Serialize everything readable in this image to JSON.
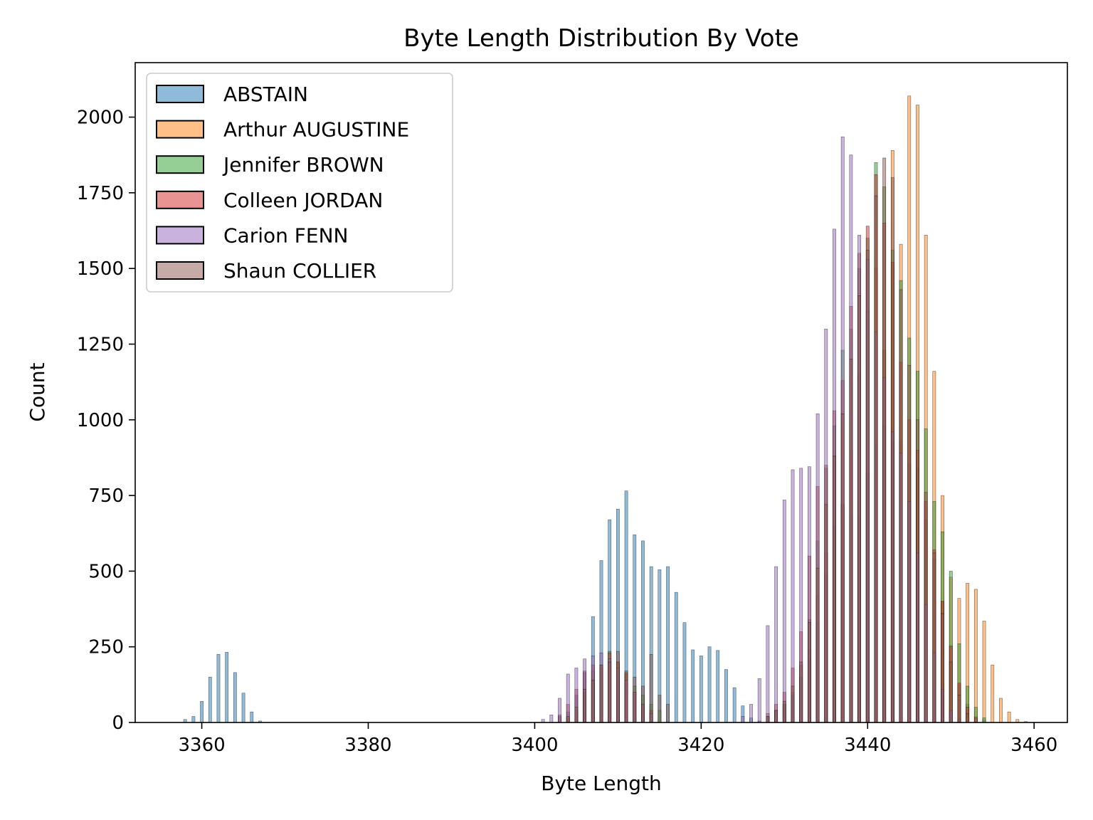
{
  "chart_data": {
    "type": "bar",
    "title": "Byte Length Distribution By Vote",
    "xlabel": "Byte Length",
    "ylabel": "Count",
    "xlim": [
      3352,
      3464
    ],
    "ylim": [
      0,
      2180
    ],
    "xticks": [
      3360,
      3380,
      3400,
      3420,
      3440,
      3460
    ],
    "yticks": [
      0,
      250,
      500,
      750,
      1000,
      1250,
      1500,
      1750,
      2000
    ],
    "grid": false,
    "legend_position": "top-left",
    "series": [
      {
        "name": "ABSTAIN",
        "color": "#1f77b4",
        "bins": [
          [
            3358,
            10
          ],
          [
            3359,
            20
          ],
          [
            3360,
            70
          ],
          [
            3361,
            150
          ],
          [
            3362,
            225
          ],
          [
            3363,
            232
          ],
          [
            3364,
            165
          ],
          [
            3365,
            97
          ],
          [
            3366,
            35
          ],
          [
            3367,
            5
          ],
          [
            3403,
            20
          ],
          [
            3404,
            35
          ],
          [
            3405,
            90
          ],
          [
            3406,
            165
          ],
          [
            3407,
            350
          ],
          [
            3408,
            535
          ],
          [
            3409,
            670
          ],
          [
            3410,
            705
          ],
          [
            3411,
            765
          ],
          [
            3412,
            620
          ],
          [
            3413,
            600
          ],
          [
            3414,
            515
          ],
          [
            3415,
            505
          ],
          [
            3416,
            515
          ],
          [
            3417,
            430
          ],
          [
            3418,
            330
          ],
          [
            3419,
            240
          ],
          [
            3420,
            220
          ],
          [
            3421,
            250
          ],
          [
            3422,
            238
          ],
          [
            3423,
            175
          ],
          [
            3424,
            115
          ],
          [
            3425,
            55
          ],
          [
            3426,
            15
          ],
          [
            3427,
            5
          ],
          [
            3428,
            20
          ],
          [
            3429,
            40
          ],
          [
            3430,
            60
          ],
          [
            3431,
            90
          ],
          [
            3432,
            150
          ],
          [
            3433,
            210
          ],
          [
            3434,
            330
          ],
          [
            3435,
            490
          ],
          [
            3436,
            650
          ],
          [
            3437,
            720
          ],
          [
            3438,
            680
          ],
          [
            3439,
            680
          ],
          [
            3440,
            825
          ],
          [
            3441,
            920
          ],
          [
            3442,
            980
          ],
          [
            3443,
            930
          ],
          [
            3444,
            930
          ],
          [
            3445,
            855
          ],
          [
            3446,
            840
          ],
          [
            3447,
            670
          ],
          [
            3448,
            540
          ],
          [
            3449,
            400
          ],
          [
            3450,
            255
          ],
          [
            3451,
            125
          ],
          [
            3452,
            60
          ],
          [
            3453,
            20
          ],
          [
            3454,
            8
          ]
        ]
      },
      {
        "name": "Arthur AUGUSTINE",
        "color": "#ff7f0e",
        "bins": [
          [
            3433,
            240
          ],
          [
            3434,
            420
          ],
          [
            3435,
            560
          ],
          [
            3436,
            630
          ],
          [
            3437,
            720
          ],
          [
            3438,
            900
          ],
          [
            3439,
            1150
          ],
          [
            3440,
            1360
          ],
          [
            3441,
            1500
          ],
          [
            3442,
            1230
          ],
          [
            3443,
            1890
          ],
          [
            3444,
            1580
          ],
          [
            3445,
            2070
          ],
          [
            3446,
            2040
          ],
          [
            3447,
            1610
          ],
          [
            3448,
            1160
          ],
          [
            3449,
            750
          ],
          [
            3450,
            480
          ],
          [
            3451,
            410
          ],
          [
            3452,
            460
          ],
          [
            3453,
            440
          ],
          [
            3454,
            335
          ],
          [
            3455,
            190
          ],
          [
            3456,
            80
          ],
          [
            3457,
            35
          ],
          [
            3458,
            10
          ],
          [
            3459,
            3
          ]
        ]
      },
      {
        "name": "Jennifer BROWN",
        "color": "#2ca02c",
        "bins": [
          [
            3404,
            15
          ],
          [
            3405,
            40
          ],
          [
            3406,
            100
          ],
          [
            3407,
            170
          ],
          [
            3408,
            180
          ],
          [
            3409,
            235
          ],
          [
            3410,
            200
          ],
          [
            3411,
            165
          ],
          [
            3412,
            120
          ],
          [
            3413,
            90
          ],
          [
            3414,
            60
          ],
          [
            3415,
            40
          ],
          [
            3428,
            20
          ],
          [
            3429,
            40
          ],
          [
            3430,
            60
          ],
          [
            3431,
            100
          ],
          [
            3432,
            190
          ],
          [
            3433,
            340
          ],
          [
            3434,
            600
          ],
          [
            3435,
            840
          ],
          [
            3436,
            980
          ],
          [
            3437,
            1230
          ],
          [
            3438,
            1300
          ],
          [
            3439,
            1500
          ],
          [
            3440,
            1600
          ],
          [
            3441,
            1850
          ],
          [
            3442,
            1770
          ],
          [
            3443,
            1560
          ],
          [
            3444,
            1460
          ],
          [
            3445,
            1270
          ],
          [
            3446,
            1160
          ],
          [
            3447,
            970
          ],
          [
            3448,
            730
          ],
          [
            3449,
            630
          ],
          [
            3450,
            500
          ],
          [
            3451,
            260
          ],
          [
            3452,
            120
          ],
          [
            3453,
            50
          ],
          [
            3454,
            15
          ]
        ]
      },
      {
        "name": "Colleen JORDAN",
        "color": "#d62728",
        "bins": [
          [
            3403,
            25
          ],
          [
            3404,
            60
          ],
          [
            3405,
            110
          ],
          [
            3406,
            170
          ],
          [
            3407,
            190
          ],
          [
            3408,
            190
          ],
          [
            3409,
            230
          ],
          [
            3410,
            200
          ],
          [
            3411,
            160
          ],
          [
            3412,
            100
          ],
          [
            3413,
            60
          ],
          [
            3414,
            40
          ],
          [
            3428,
            30
          ],
          [
            3429,
            60
          ],
          [
            3430,
            100
          ],
          [
            3431,
            180
          ],
          [
            3432,
            300
          ],
          [
            3433,
            550
          ],
          [
            3434,
            780
          ],
          [
            3435,
            850
          ],
          [
            3436,
            1030
          ],
          [
            3437,
            1130
          ],
          [
            3438,
            1375
          ],
          [
            3439,
            1550
          ],
          [
            3440,
            1640
          ],
          [
            3441,
            1810
          ],
          [
            3442,
            1650
          ],
          [
            3443,
            1520
          ],
          [
            3444,
            1190
          ],
          [
            3445,
            1000
          ],
          [
            3446,
            900
          ],
          [
            3447,
            730
          ],
          [
            3448,
            570
          ],
          [
            3449,
            400
          ],
          [
            3450,
            250
          ],
          [
            3451,
            130
          ],
          [
            3452,
            50
          ],
          [
            3453,
            15
          ]
        ]
      },
      {
        "name": "Carion FENN",
        "color": "#9467bd",
        "bins": [
          [
            3401,
            10
          ],
          [
            3402,
            25
          ],
          [
            3403,
            80
          ],
          [
            3404,
            160
          ],
          [
            3405,
            180
          ],
          [
            3406,
            210
          ],
          [
            3407,
            220
          ],
          [
            3408,
            230
          ],
          [
            3409,
            210
          ],
          [
            3410,
            180
          ],
          [
            3411,
            140
          ],
          [
            3412,
            100
          ],
          [
            3413,
            60
          ],
          [
            3414,
            30
          ],
          [
            3425,
            20
          ],
          [
            3426,
            60
          ],
          [
            3427,
            145
          ],
          [
            3428,
            320
          ],
          [
            3429,
            515
          ],
          [
            3430,
            735
          ],
          [
            3431,
            835
          ],
          [
            3432,
            840
          ],
          [
            3433,
            845
          ],
          [
            3434,
            1020
          ],
          [
            3435,
            1300
          ],
          [
            3436,
            1630
          ],
          [
            3437,
            1935
          ],
          [
            3438,
            1875
          ],
          [
            3439,
            1610
          ],
          [
            3440,
            1530
          ],
          [
            3441,
            1290
          ],
          [
            3442,
            1140
          ],
          [
            3443,
            960
          ],
          [
            3444,
            890
          ],
          [
            3445,
            730
          ],
          [
            3446,
            560
          ],
          [
            3447,
            390
          ],
          [
            3448,
            230
          ],
          [
            3449,
            110
          ],
          [
            3450,
            40
          ],
          [
            3451,
            10
          ]
        ]
      },
      {
        "name": "Shaun COLLIER",
        "color": "#8c564b",
        "bins": [
          [
            3404,
            20
          ],
          [
            3405,
            50
          ],
          [
            3406,
            110
          ],
          [
            3407,
            140
          ],
          [
            3408,
            190
          ],
          [
            3409,
            200
          ],
          [
            3410,
            235
          ],
          [
            3411,
            170
          ],
          [
            3412,
            150
          ],
          [
            3413,
            120
          ],
          [
            3414,
            225
          ],
          [
            3415,
            90
          ],
          [
            3416,
            60
          ],
          [
            3428,
            20
          ],
          [
            3429,
            40
          ],
          [
            3430,
            70
          ],
          [
            3431,
            120
          ],
          [
            3432,
            200
          ],
          [
            3433,
            330
          ],
          [
            3434,
            510
          ],
          [
            3435,
            720
          ],
          [
            3436,
            880
          ],
          [
            3437,
            1020
          ],
          [
            3438,
            1200
          ],
          [
            3439,
            1410
          ],
          [
            3440,
            1560
          ],
          [
            3441,
            1740
          ],
          [
            3442,
            1865
          ],
          [
            3443,
            1800
          ],
          [
            3444,
            1430
          ],
          [
            3445,
            1180
          ],
          [
            3446,
            1000
          ],
          [
            3447,
            760
          ],
          [
            3448,
            560
          ],
          [
            3449,
            360
          ],
          [
            3450,
            200
          ],
          [
            3451,
            90
          ],
          [
            3452,
            30
          ]
        ]
      }
    ]
  }
}
